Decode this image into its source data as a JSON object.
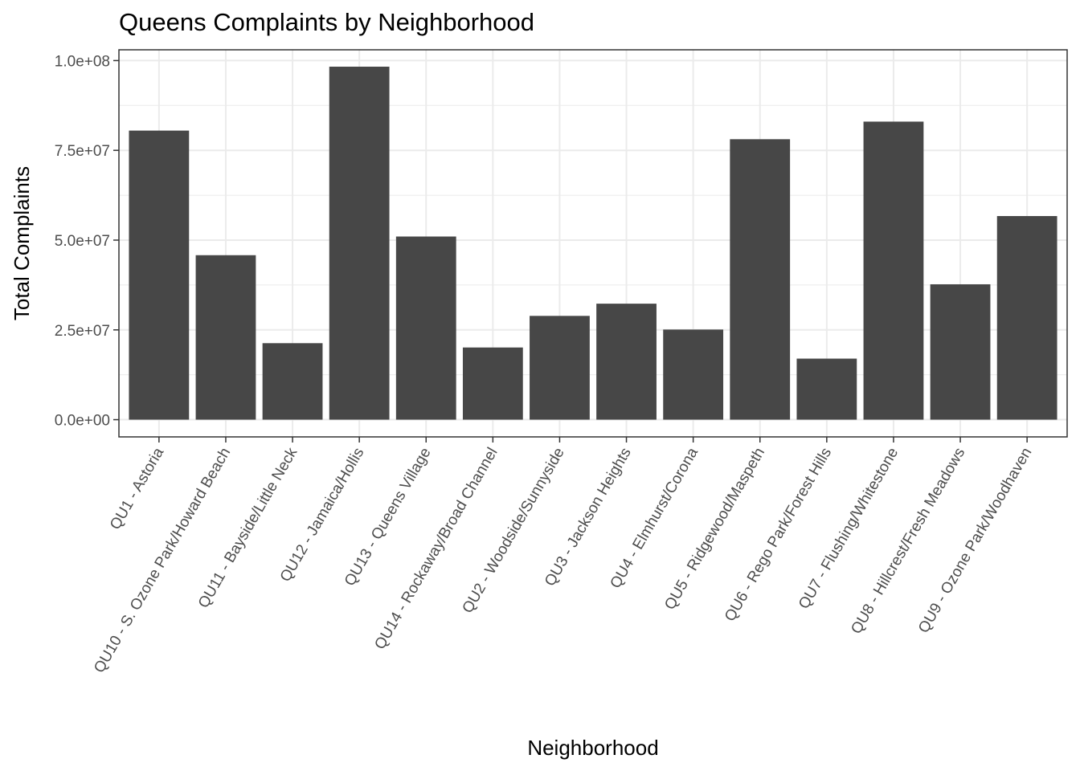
{
  "chart_data": {
    "type": "bar",
    "title": "Queens Complaints by Neighborhood",
    "xlabel": "Neighborhood",
    "ylabel": "Total Complaints",
    "categories": [
      "QU1 - Astoria",
      "QU10 - S. Ozone Park/Howard Beach",
      "QU11 - Bayside/Little Neck",
      "QU12 - Jamaica/Hollis",
      "QU13 - Queens Village",
      "QU14 - Rockaway/Broad Channel",
      "QU2 - Woodside/Sunnyside",
      "QU3 - Jackson Heights",
      "QU4 - Elmhurst/Corona",
      "QU5 - Ridgewood/Maspeth",
      "QU6 - Rego Park/Forest Hills",
      "QU7 - Flushing/Whitestone",
      "QU8 - Hillcrest/Fresh Meadows",
      "QU9 - Ozone Park/Woodhaven"
    ],
    "values": [
      80500000,
      45800000,
      21300000,
      98300000,
      51000000,
      20100000,
      28900000,
      32300000,
      25100000,
      78100000,
      17000000,
      83000000,
      37700000,
      56700000
    ],
    "ylim": [
      -4800000,
      103000000
    ],
    "yticks": [
      0,
      25000000,
      50000000,
      75000000,
      100000000
    ],
    "ytick_labels": [
      "0.0e+00",
      "2.5e+07",
      "5.0e+07",
      "7.5e+07",
      "1.0e+08"
    ],
    "grid": true,
    "bar_color": "#474747",
    "theme": "bw"
  }
}
